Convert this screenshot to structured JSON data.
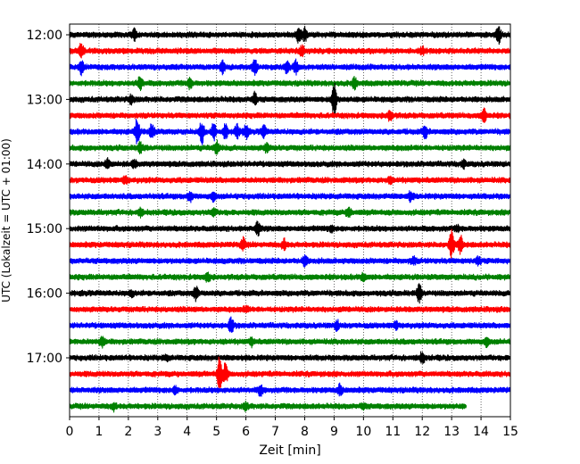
{
  "chart_data": {
    "type": "line",
    "title": "",
    "xlabel": "Zeit  [min]",
    "ylabel": "UTC (Lokalzeit = UTC + 01:00)",
    "xlim": [
      0,
      15
    ],
    "x_ticks": [
      "0",
      "1",
      "2",
      "3",
      "4",
      "5",
      "6",
      "7",
      "8",
      "9",
      "10",
      "11",
      "12",
      "13",
      "14",
      "15"
    ],
    "y_tick_labels": [
      "12:00",
      "13:00",
      "14:00",
      "15:00",
      "16:00",
      "17:00"
    ],
    "y_tick_rows": [
      0,
      4,
      8,
      12,
      16,
      20
    ],
    "row_minutes": 15,
    "row_start": "12:00",
    "grid": "vertical-dotted",
    "color_cycle": [
      "#000000",
      "#ff0000",
      "#0000ff",
      "#008000"
    ],
    "rows": [
      {
        "start": "12:00",
        "color": "#000000",
        "end_min": 15,
        "events": [
          [
            2.2,
            0.6
          ],
          [
            7.8,
            0.9
          ],
          [
            8.0,
            0.8
          ],
          [
            14.6,
            0.9
          ]
        ]
      },
      {
        "start": "12:15",
        "color": "#ff0000",
        "end_min": 15,
        "events": [
          [
            0.4,
            0.9
          ],
          [
            7.9,
            0.6
          ],
          [
            12.0,
            0.4
          ]
        ]
      },
      {
        "start": "12:30",
        "color": "#0000ff",
        "end_min": 15,
        "events": [
          [
            0.4,
            0.8
          ],
          [
            5.2,
            0.7
          ],
          [
            6.3,
            0.8
          ],
          [
            7.4,
            0.7
          ],
          [
            7.7,
            0.8
          ]
        ]
      },
      {
        "start": "12:45",
        "color": "#008000",
        "end_min": 15,
        "events": [
          [
            2.4,
            0.8
          ],
          [
            4.1,
            0.6
          ],
          [
            9.7,
            0.6
          ]
        ]
      },
      {
        "start": "13:00",
        "color": "#000000",
        "end_min": 15,
        "events": [
          [
            2.1,
            0.5
          ],
          [
            6.3,
            0.7
          ],
          [
            9.0,
            2.2
          ]
        ]
      },
      {
        "start": "13:15",
        "color": "#ff0000",
        "end_min": 15,
        "events": [
          [
            10.9,
            0.6
          ],
          [
            14.1,
            0.8
          ]
        ]
      },
      {
        "start": "13:30",
        "color": "#0000ff",
        "end_min": 15,
        "events": [
          [
            2.3,
            1.6
          ],
          [
            2.8,
            0.9
          ],
          [
            4.5,
            1.3
          ],
          [
            4.9,
            0.9
          ],
          [
            5.3,
            0.8
          ],
          [
            5.7,
            0.8
          ],
          [
            6.0,
            0.8
          ],
          [
            6.6,
            0.7
          ],
          [
            12.1,
            0.7
          ]
        ]
      },
      {
        "start": "13:45",
        "color": "#008000",
        "end_min": 15,
        "events": [
          [
            2.4,
            0.6
          ],
          [
            5.0,
            0.8
          ],
          [
            6.7,
            0.5
          ]
        ]
      },
      {
        "start": "14:00",
        "color": "#000000",
        "end_min": 15,
        "events": [
          [
            1.3,
            0.6
          ],
          [
            2.2,
            0.4
          ],
          [
            13.4,
            0.4
          ]
        ]
      },
      {
        "start": "14:15",
        "color": "#ff0000",
        "end_min": 15,
        "events": [
          [
            1.9,
            0.4
          ],
          [
            10.9,
            0.3
          ]
        ]
      },
      {
        "start": "14:30",
        "color": "#0000ff",
        "end_min": 15,
        "events": [
          [
            4.1,
            0.6
          ],
          [
            4.9,
            0.4
          ],
          [
            11.6,
            0.5
          ]
        ]
      },
      {
        "start": "14:45",
        "color": "#008000",
        "end_min": 15,
        "events": [
          [
            2.4,
            0.4
          ],
          [
            4.9,
            0.4
          ],
          [
            9.5,
            0.5
          ]
        ]
      },
      {
        "start": "15:00",
        "color": "#000000",
        "end_min": 15,
        "events": [
          [
            6.4,
            0.8
          ],
          [
            8.9,
            0.3
          ],
          [
            13.2,
            0.3
          ]
        ]
      },
      {
        "start": "15:15",
        "color": "#ff0000",
        "end_min": 15,
        "events": [
          [
            5.9,
            0.7
          ],
          [
            7.3,
            0.6
          ],
          [
            13.0,
            1.6
          ],
          [
            13.3,
            1.0
          ]
        ]
      },
      {
        "start": "15:30",
        "color": "#0000ff",
        "end_min": 15,
        "events": [
          [
            8.0,
            0.6
          ],
          [
            11.7,
            0.4
          ],
          [
            13.9,
            0.4
          ]
        ]
      },
      {
        "start": "15:45",
        "color": "#008000",
        "end_min": 15,
        "events": [
          [
            4.7,
            0.5
          ],
          [
            10.0,
            0.4
          ]
        ]
      },
      {
        "start": "16:00",
        "color": "#000000",
        "end_min": 15,
        "events": [
          [
            2.1,
            0.3
          ],
          [
            4.3,
            0.8
          ],
          [
            11.9,
            1.0
          ]
        ]
      },
      {
        "start": "16:15",
        "color": "#ff0000",
        "end_min": 15,
        "events": [
          [
            6.0,
            0.3
          ]
        ]
      },
      {
        "start": "16:30",
        "color": "#0000ff",
        "end_min": 15,
        "events": [
          [
            5.5,
            0.9
          ],
          [
            9.1,
            0.5
          ],
          [
            11.1,
            0.4
          ]
        ]
      },
      {
        "start": "16:45",
        "color": "#008000",
        "end_min": 15,
        "events": [
          [
            1.1,
            0.6
          ],
          [
            6.2,
            0.4
          ],
          [
            14.2,
            0.4
          ]
        ]
      },
      {
        "start": "17:00",
        "color": "#000000",
        "end_min": 15,
        "events": [
          [
            3.3,
            0.3
          ],
          [
            12.0,
            0.6
          ]
        ]
      },
      {
        "start": "17:15",
        "color": "#ff0000",
        "end_min": 15,
        "events": [
          [
            5.1,
            2.0
          ],
          [
            5.3,
            1.2
          ]
        ]
      },
      {
        "start": "17:30",
        "color": "#0000ff",
        "end_min": 15,
        "events": [
          [
            6.5,
            0.6
          ],
          [
            9.2,
            0.6
          ],
          [
            3.6,
            0.4
          ]
        ]
      },
      {
        "start": "17:45",
        "color": "#008000",
        "end_min": 13.5,
        "events": [
          [
            1.5,
            0.4
          ],
          [
            6.0,
            0.4
          ],
          [
            10.0,
            0.3
          ]
        ]
      }
    ]
  }
}
